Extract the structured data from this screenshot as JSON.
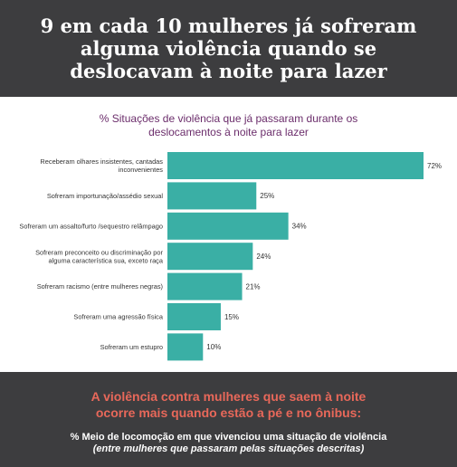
{
  "header": {
    "title": "9 em cada 10 mulheres já sofreram\nalguma violência quando se\ndeslocavam à noite para lazer"
  },
  "chart_data": {
    "type": "bar",
    "orientation": "horizontal",
    "title": "% Situações de violência que já passaram durante os\ndeslocamentos à noite para lazer",
    "categories": [
      "Receberam olhares insistentes, cantadas\ninconvenientes",
      "Sofreram importunação/assédio sexual",
      "Sofreram um assalto/furto /sequestro relâmpago",
      "Sofreram preconceito ou discriminação por\nalguma característica sua, exceto raça",
      "Sofreram racismo (entre mulheres negras)",
      "Sofreram uma agressão física",
      "Sofreram um estupro"
    ],
    "values": [
      72,
      25,
      34,
      24,
      21,
      15,
      10
    ],
    "value_labels": [
      "72%",
      "25%",
      "34%",
      "24%",
      "21%",
      "15%",
      "10%"
    ],
    "xlim": [
      0,
      72
    ],
    "grid": false,
    "bar_color": "#3aafa5"
  },
  "footer": {
    "headline": "A violência contra mulheres que saem à noite\nocorre mais quando estão a pé e no ônibus:",
    "sub": "% Meio de locomoção em que vivenciou uma situação de violência",
    "sub_italic": "(entre mulheres que passaram pelas situações descritas)"
  }
}
